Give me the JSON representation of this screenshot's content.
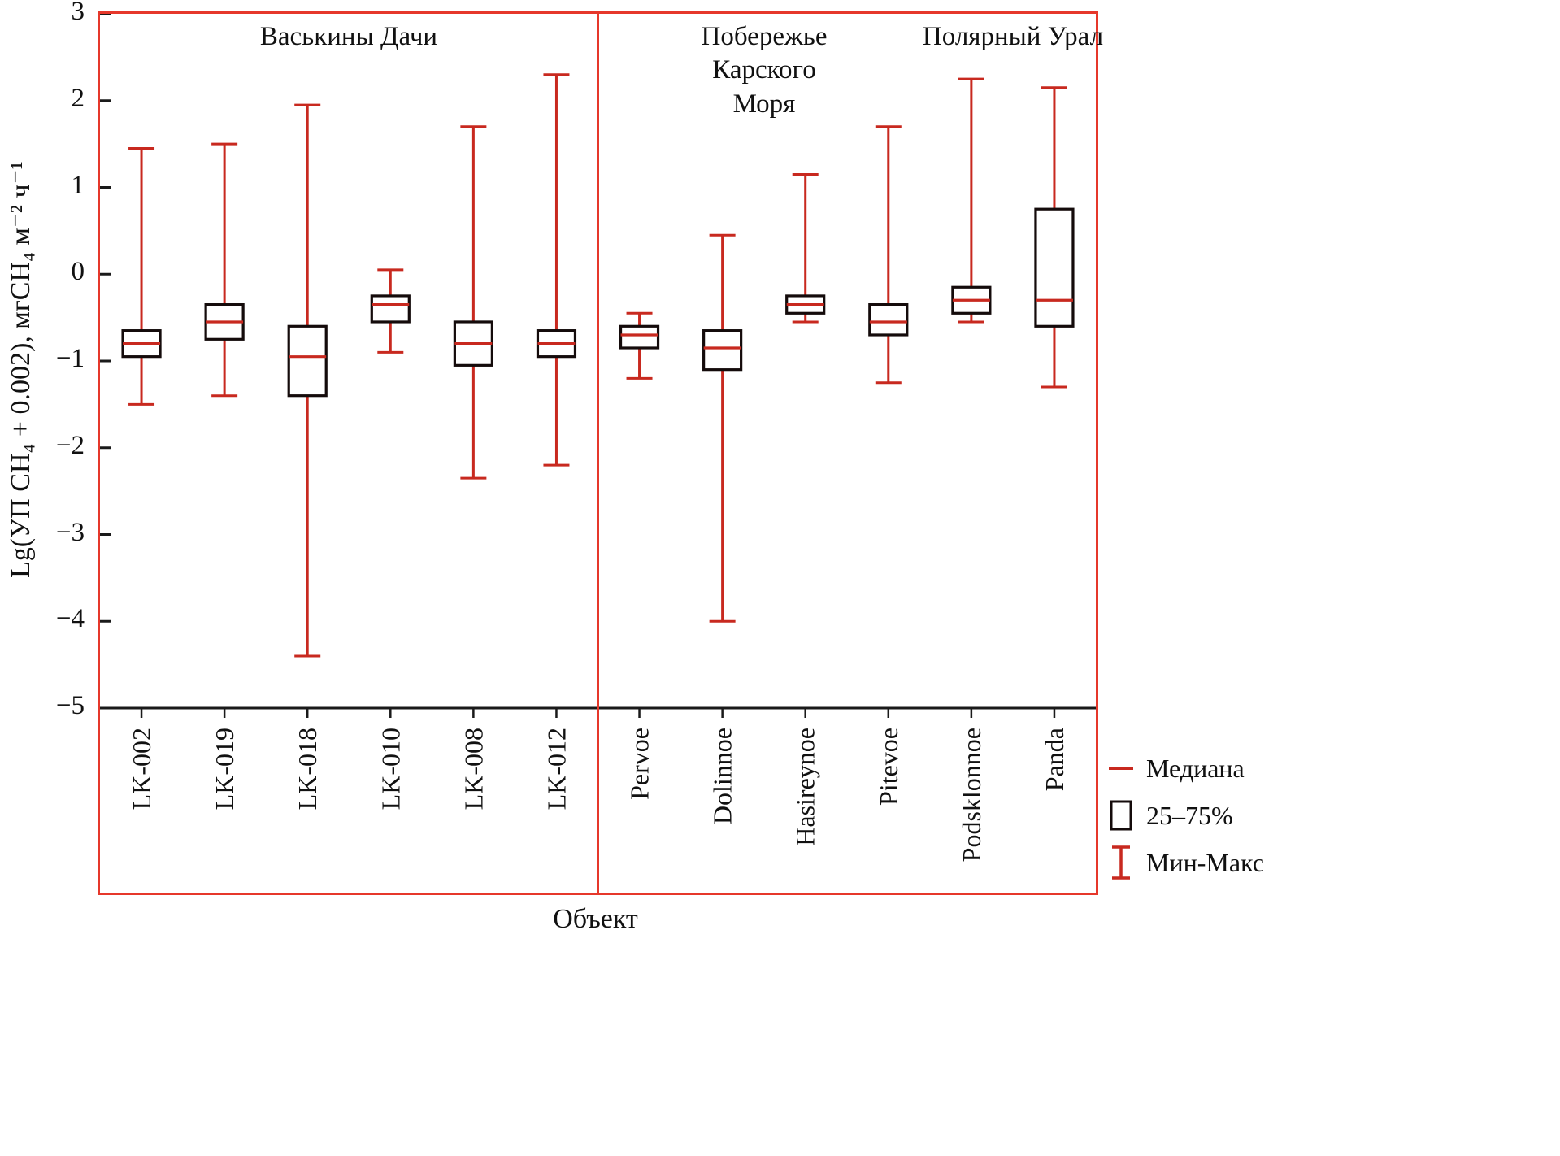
{
  "colors": {
    "frame": "#e6382b",
    "whisker": "#c8291f",
    "median": "#c8291f",
    "box_edge": "#140b0b",
    "box_fill": "#ffffff",
    "axis": "#1a1a1a",
    "text": "#111111"
  },
  "chart_data": {
    "type": "boxplot",
    "xlabel": "Объект",
    "ylabel": "Lg(УП CH₄ + 0.002), мгCH₄ м⁻² ч⁻¹",
    "ylim": [
      -5,
      3
    ],
    "yticks": [
      3,
      2,
      1,
      0,
      -1,
      -2,
      -3,
      -4,
      -5
    ],
    "legend": [
      "Медиана",
      "25–75%",
      "Мин-Макс"
    ],
    "legend_position": "right-bottom-outside",
    "grid": false,
    "groups": [
      {
        "label": "Васькины Дачи",
        "span": [
          0,
          5
        ]
      },
      {
        "label": "Побережье Карского Моря",
        "span": [
          6,
          9
        ]
      },
      {
        "label": "Полярный Урал",
        "span": [
          10,
          11
        ]
      }
    ],
    "categories": [
      "LK-002",
      "LK-019",
      "LK-018",
      "LK-010",
      "LK-008",
      "LK-012",
      "Pervoe",
      "Dolinnoe",
      "Hasireynoe",
      "Pitevoe",
      "Podsklonnoe",
      "Panda"
    ],
    "series": [
      {
        "name": "LK-002",
        "min": -1.5,
        "q1": -0.95,
        "median": -0.8,
        "q3": -0.65,
        "max": 1.45
      },
      {
        "name": "LK-019",
        "min": -1.4,
        "q1": -0.75,
        "median": -0.55,
        "q3": -0.35,
        "max": 1.5
      },
      {
        "name": "LK-018",
        "min": -4.4,
        "q1": -1.4,
        "median": -0.95,
        "q3": -0.6,
        "max": 1.95
      },
      {
        "name": "LK-010",
        "min": -0.9,
        "q1": -0.55,
        "median": -0.35,
        "q3": -0.25,
        "max": 0.05
      },
      {
        "name": "LK-008",
        "min": -2.35,
        "q1": -1.05,
        "median": -0.8,
        "q3": -0.55,
        "max": 1.7
      },
      {
        "name": "LK-012",
        "min": -2.2,
        "q1": -0.95,
        "median": -0.8,
        "q3": -0.65,
        "max": 2.3
      },
      {
        "name": "Pervoe",
        "min": -1.2,
        "q1": -0.85,
        "median": -0.7,
        "q3": -0.6,
        "max": -0.45
      },
      {
        "name": "Dolinnoe",
        "min": -4.0,
        "q1": -1.1,
        "median": -0.85,
        "q3": -0.65,
        "max": 0.45
      },
      {
        "name": "Hasireynoe",
        "min": -0.55,
        "q1": -0.45,
        "median": -0.35,
        "q3": -0.25,
        "max": 1.15
      },
      {
        "name": "Pitevoe",
        "min": -1.25,
        "q1": -0.7,
        "median": -0.55,
        "q3": -0.35,
        "max": 1.7
      },
      {
        "name": "Podsklonnoe",
        "min": -0.55,
        "q1": -0.45,
        "median": -0.3,
        "q3": -0.15,
        "max": 2.25
      },
      {
        "name": "Panda",
        "min": -1.3,
        "q1": -0.6,
        "median": -0.3,
        "q3": 0.75,
        "max": 2.15
      }
    ]
  }
}
